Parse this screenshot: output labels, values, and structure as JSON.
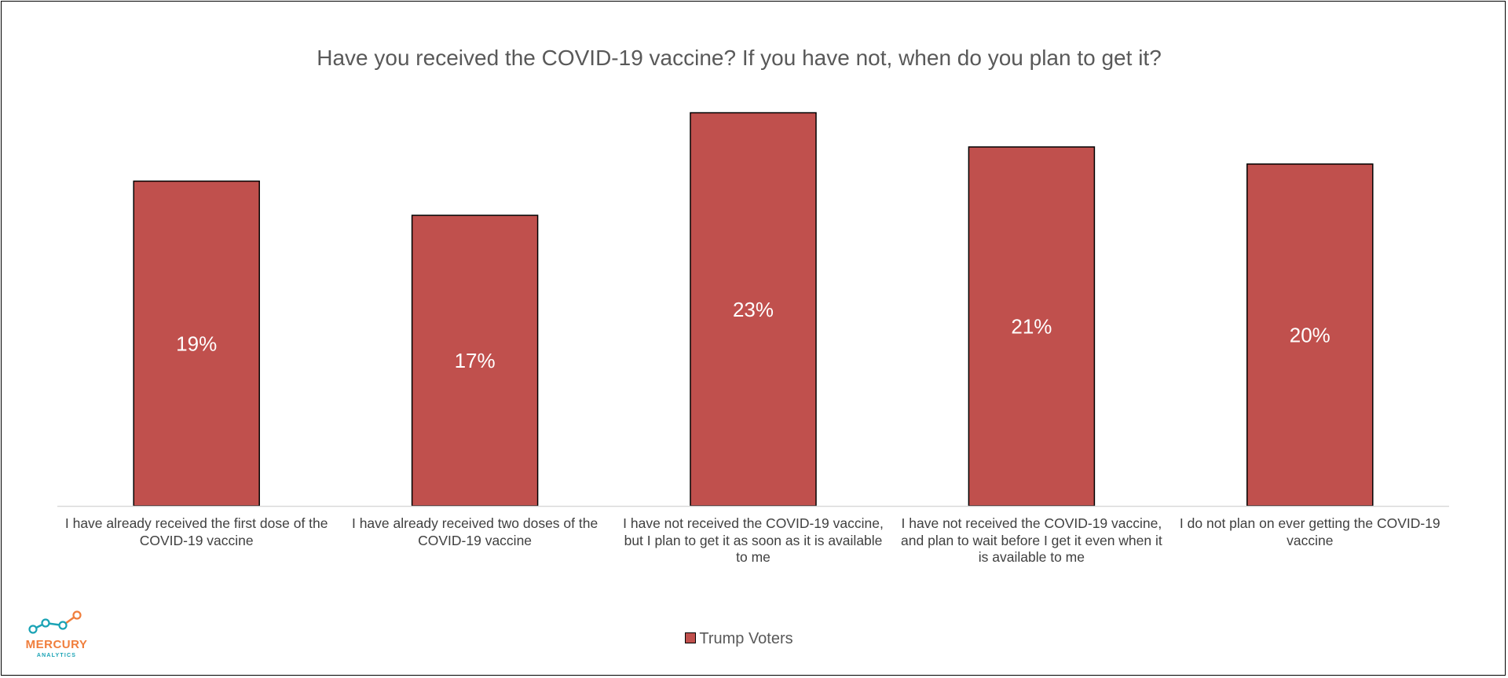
{
  "chart_data": {
    "type": "bar",
    "title": "Have you received the COVID-19 vaccine? If you have not, when do you plan to get it?",
    "categories": [
      "I have already received the first dose of the COVID-19 vaccine",
      "I have already received two doses of the COVID-19 vaccine",
      "I have not received the COVID-19 vaccine, but I plan to get it as soon as it is available to me",
      "I have not received the COVID-19 vaccine, and plan to wait before I get it even when it is available to me",
      "I do not plan on ever getting the COVID-19 vaccine"
    ],
    "series": [
      {
        "name": "Trump Voters",
        "values": [
          19,
          17,
          23,
          21,
          20
        ],
        "data_labels": [
          "19%",
          "17%",
          "23%",
          "21%",
          "20%"
        ]
      }
    ],
    "ylim": [
      0,
      25
    ],
    "grid": false,
    "legend_position": "bottom"
  },
  "colors": {
    "bar": "#c0504d",
    "bar_border": "#000000",
    "axis_line": "#d9d9d9",
    "data_label": "#ffffff",
    "logo_teal": "#1aa3b5",
    "logo_orange": "#f07e3c"
  },
  "logo": {
    "word": "MERCURY",
    "sub": "ANALYTICS"
  }
}
